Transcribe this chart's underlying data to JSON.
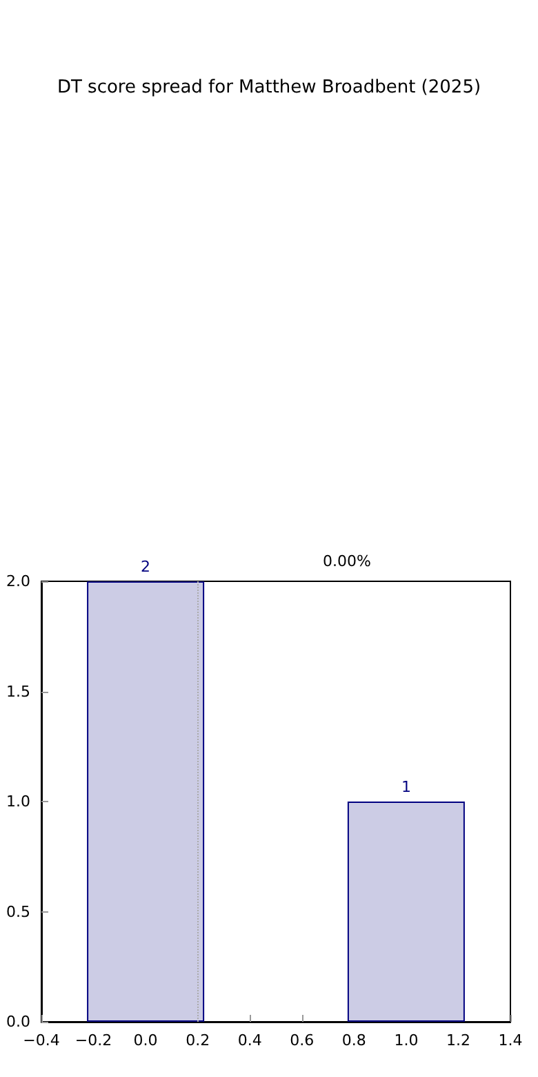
{
  "chart_data": {
    "type": "bar",
    "title": "DT score spread for Matthew Broadbent (2025)",
    "x": [
      0,
      1
    ],
    "values": [
      2,
      1
    ],
    "color": "#cccce5",
    "data_labels": true,
    "xlim": [
      -0.4,
      1.4
    ],
    "xticks": [
      {
        "value": -0.4,
        "label": "−0.4"
      },
      {
        "value": -0.2,
        "label": "−0.2"
      },
      {
        "value": 0,
        "label": "0.0"
      },
      0.2,
      0.4,
      0.6,
      0.8,
      {
        "value": 1,
        "label": "1.0"
      },
      1.2,
      1.4
    ],
    "ylim": [
      0,
      2
    ],
    "yticks": [
      {
        "value": 0,
        "label": "0.0"
      },
      0.5,
      {
        "value": 1,
        "label": "1.0"
      },
      1.5,
      {
        "value": 2,
        "label": "2.0"
      }
    ],
    "ref_lines": [
      {
        "axis": "x",
        "value": 0.2,
        "color": "#aaaaaa",
        "line_style": "dotted"
      }
    ],
    "annotations": [
      "0.00%"
    ],
    "grid": false
  }
}
